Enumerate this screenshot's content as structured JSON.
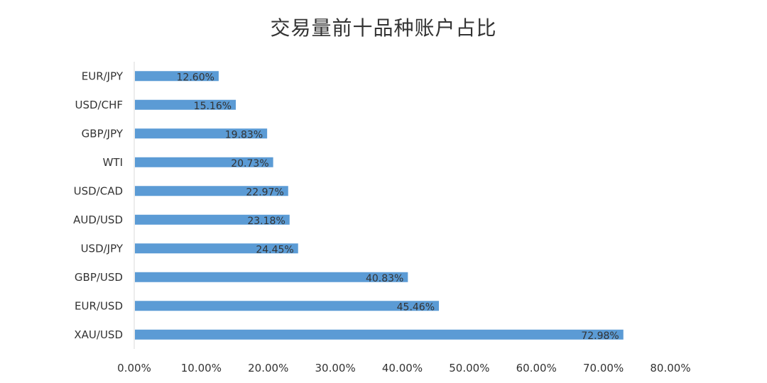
{
  "chart_data": {
    "type": "bar",
    "orientation": "horizontal",
    "title": "交易量前十品种账户占比",
    "categories": [
      "EUR/JPY",
      "USD/CHF",
      "GBP/JPY",
      "WTI",
      "USD/CAD",
      "AUD/USD",
      "USD/JPY",
      "GBP/USD",
      "EUR/USD",
      "XAU/USD"
    ],
    "values": [
      12.6,
      15.16,
      19.83,
      20.73,
      22.97,
      23.18,
      24.45,
      40.83,
      45.46,
      72.98
    ],
    "data_labels": [
      "12.60%",
      "15.16%",
      "19.83%",
      "20.73%",
      "22.97%",
      "23.18%",
      "24.45%",
      "40.83%",
      "45.46%",
      "72.98%"
    ],
    "xlim": [
      0,
      80
    ],
    "x_ticks": [
      0,
      10,
      20,
      30,
      40,
      50,
      60,
      70,
      80
    ],
    "x_tick_labels": [
      "0.00%",
      "10.00%",
      "20.00%",
      "30.00%",
      "40.00%",
      "50.00%",
      "60.00%",
      "70.00%",
      "80.00%"
    ],
    "xlabel": "",
    "ylabel": "",
    "grid": false,
    "legend": "none",
    "bar_color": "#5b9bd5"
  }
}
